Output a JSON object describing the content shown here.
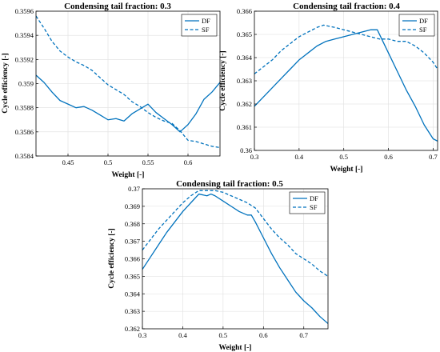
{
  "chart_data": [
    {
      "type": "line",
      "title": "Condensing tail fraction: 0.3",
      "xlabel": "Weight [-]",
      "ylabel": "Cycle efficiency [-]",
      "xlim": [
        0.41,
        0.64
      ],
      "ylim": [
        0.3584,
        0.3596
      ],
      "xticks": [
        "0.45",
        "0.5",
        "0.55",
        "0.6"
      ],
      "xtick_values": [
        0.45,
        0.5,
        0.55,
        0.6
      ],
      "yticks": [
        "0.3584",
        "0.3586",
        "0.3588",
        "0.359",
        "0.3592",
        "0.3594",
        "0.3596"
      ],
      "ytick_values": [
        0.3584,
        0.3586,
        0.3588,
        0.359,
        0.3592,
        0.3594,
        0.3596
      ],
      "grid": true,
      "legend_position": "top-right",
      "color": "#0072BD",
      "series": [
        {
          "name": "DF",
          "style": "solid",
          "x": [
            0.41,
            0.42,
            0.43,
            0.44,
            0.45,
            0.46,
            0.47,
            0.48,
            0.49,
            0.5,
            0.51,
            0.52,
            0.53,
            0.54,
            0.55,
            0.56,
            0.57,
            0.58,
            0.59,
            0.6,
            0.61,
            0.62,
            0.63,
            0.64
          ],
          "y": [
            0.35907,
            0.35901,
            0.35893,
            0.35886,
            0.35883,
            0.3588,
            0.35881,
            0.35878,
            0.35874,
            0.3587,
            0.35871,
            0.35869,
            0.35875,
            0.35879,
            0.35883,
            0.35876,
            0.35871,
            0.35866,
            0.3586,
            0.35866,
            0.35875,
            0.35887,
            0.35893,
            0.35901
          ]
        },
        {
          "name": "SF",
          "style": "dashed",
          "x": [
            0.41,
            0.42,
            0.43,
            0.44,
            0.45,
            0.46,
            0.47,
            0.48,
            0.49,
            0.5,
            0.51,
            0.52,
            0.53,
            0.54,
            0.55,
            0.56,
            0.57,
            0.58,
            0.59,
            0.6,
            0.61,
            0.62,
            0.63,
            0.64
          ],
          "y": [
            0.35956,
            0.35946,
            0.35935,
            0.35927,
            0.35922,
            0.35918,
            0.35915,
            0.35911,
            0.35905,
            0.35899,
            0.35895,
            0.35891,
            0.35885,
            0.35881,
            0.35876,
            0.35872,
            0.35869,
            0.35867,
            0.35861,
            0.35853,
            0.35852,
            0.3585,
            0.35848,
            0.35847
          ]
        }
      ]
    },
    {
      "type": "line",
      "title": "Condensing tail fraction: 0.4",
      "xlabel": "Weight [-]",
      "ylabel": "Cycle efficiency [-]",
      "xlim": [
        0.3,
        0.71
      ],
      "ylim": [
        0.36,
        0.366
      ],
      "xticks": [
        "0.3",
        "0.4",
        "0.5",
        "0.6",
        "0.7"
      ],
      "xtick_values": [
        0.3,
        0.4,
        0.5,
        0.6,
        0.7
      ],
      "yticks": [
        "0.36",
        "0.361",
        "0.362",
        "0.363",
        "0.364",
        "0.365",
        "0.366"
      ],
      "ytick_values": [
        0.36,
        0.361,
        0.362,
        0.363,
        0.364,
        0.365,
        0.366
      ],
      "grid": true,
      "legend_position": "top-right",
      "color": "#0072BD",
      "series": [
        {
          "name": "DF",
          "style": "solid",
          "x": [
            0.3,
            0.32,
            0.34,
            0.36,
            0.38,
            0.4,
            0.42,
            0.44,
            0.46,
            0.48,
            0.5,
            0.52,
            0.54,
            0.56,
            0.575,
            0.6,
            0.62,
            0.64,
            0.66,
            0.68,
            0.7,
            0.71
          ],
          "y": [
            0.3619,
            0.3623,
            0.3627,
            0.3631,
            0.3635,
            0.3639,
            0.3642,
            0.3645,
            0.3647,
            0.3648,
            0.3649,
            0.365,
            0.3651,
            0.3652,
            0.3652,
            0.3642,
            0.3634,
            0.3626,
            0.3619,
            0.3611,
            0.3605,
            0.3604
          ]
        },
        {
          "name": "SF",
          "style": "dashed",
          "x": [
            0.3,
            0.32,
            0.34,
            0.36,
            0.38,
            0.4,
            0.42,
            0.44,
            0.455,
            0.48,
            0.5,
            0.52,
            0.54,
            0.56,
            0.58,
            0.6,
            0.62,
            0.64,
            0.66,
            0.68,
            0.7,
            0.71
          ],
          "y": [
            0.3633,
            0.3636,
            0.3639,
            0.3643,
            0.3646,
            0.3649,
            0.3651,
            0.3653,
            0.3654,
            0.3653,
            0.3652,
            0.3651,
            0.365,
            0.3649,
            0.3648,
            0.3648,
            0.3647,
            0.3647,
            0.3645,
            0.3642,
            0.3638,
            0.3635
          ]
        }
      ]
    },
    {
      "type": "line",
      "title": "Condensing tail fraction: 0.5",
      "xlabel": "Weight [-]",
      "ylabel": "Cycle efficiency [-]",
      "xlim": [
        0.3,
        0.76
      ],
      "ylim": [
        0.362,
        0.37
      ],
      "xticks": [
        "0.3",
        "0.4",
        "0.5",
        "0.6",
        "0.7"
      ],
      "xtick_values": [
        0.3,
        0.4,
        0.5,
        0.6,
        0.7
      ],
      "yticks": [
        "0.362",
        "0.363",
        "0.364",
        "0.365",
        "0.366",
        "0.367",
        "0.368",
        "0.369",
        "0.37"
      ],
      "ytick_values": [
        0.362,
        0.363,
        0.364,
        0.365,
        0.366,
        0.367,
        0.368,
        0.369,
        0.37
      ],
      "grid": true,
      "legend_position": "top-right",
      "color": "#0072BD",
      "series": [
        {
          "name": "DF",
          "style": "solid",
          "x": [
            0.3,
            0.32,
            0.34,
            0.36,
            0.38,
            0.4,
            0.42,
            0.44,
            0.46,
            0.47,
            0.48,
            0.5,
            0.52,
            0.54,
            0.56,
            0.57,
            0.58,
            0.6,
            0.62,
            0.64,
            0.66,
            0.68,
            0.7,
            0.72,
            0.74,
            0.76
          ],
          "y": [
            0.3654,
            0.3661,
            0.3668,
            0.3675,
            0.3681,
            0.3687,
            0.3692,
            0.3697,
            0.3696,
            0.3697,
            0.3696,
            0.3693,
            0.369,
            0.3687,
            0.3685,
            0.3685,
            0.3681,
            0.3672,
            0.3663,
            0.3655,
            0.3648,
            0.3641,
            0.3636,
            0.3632,
            0.3627,
            0.3623
          ]
        },
        {
          "name": "SF",
          "style": "dashed",
          "x": [
            0.3,
            0.32,
            0.34,
            0.36,
            0.38,
            0.4,
            0.42,
            0.44,
            0.46,
            0.48,
            0.5,
            0.52,
            0.54,
            0.56,
            0.58,
            0.6,
            0.62,
            0.64,
            0.66,
            0.68,
            0.7,
            0.72,
            0.74,
            0.76
          ],
          "y": [
            0.3665,
            0.3671,
            0.3677,
            0.3682,
            0.3687,
            0.3692,
            0.3696,
            0.3699,
            0.3699,
            0.3699,
            0.3698,
            0.3696,
            0.3694,
            0.3692,
            0.3689,
            0.3683,
            0.3677,
            0.3672,
            0.3668,
            0.3663,
            0.366,
            0.3657,
            0.3653,
            0.365
          ]
        }
      ]
    }
  ]
}
